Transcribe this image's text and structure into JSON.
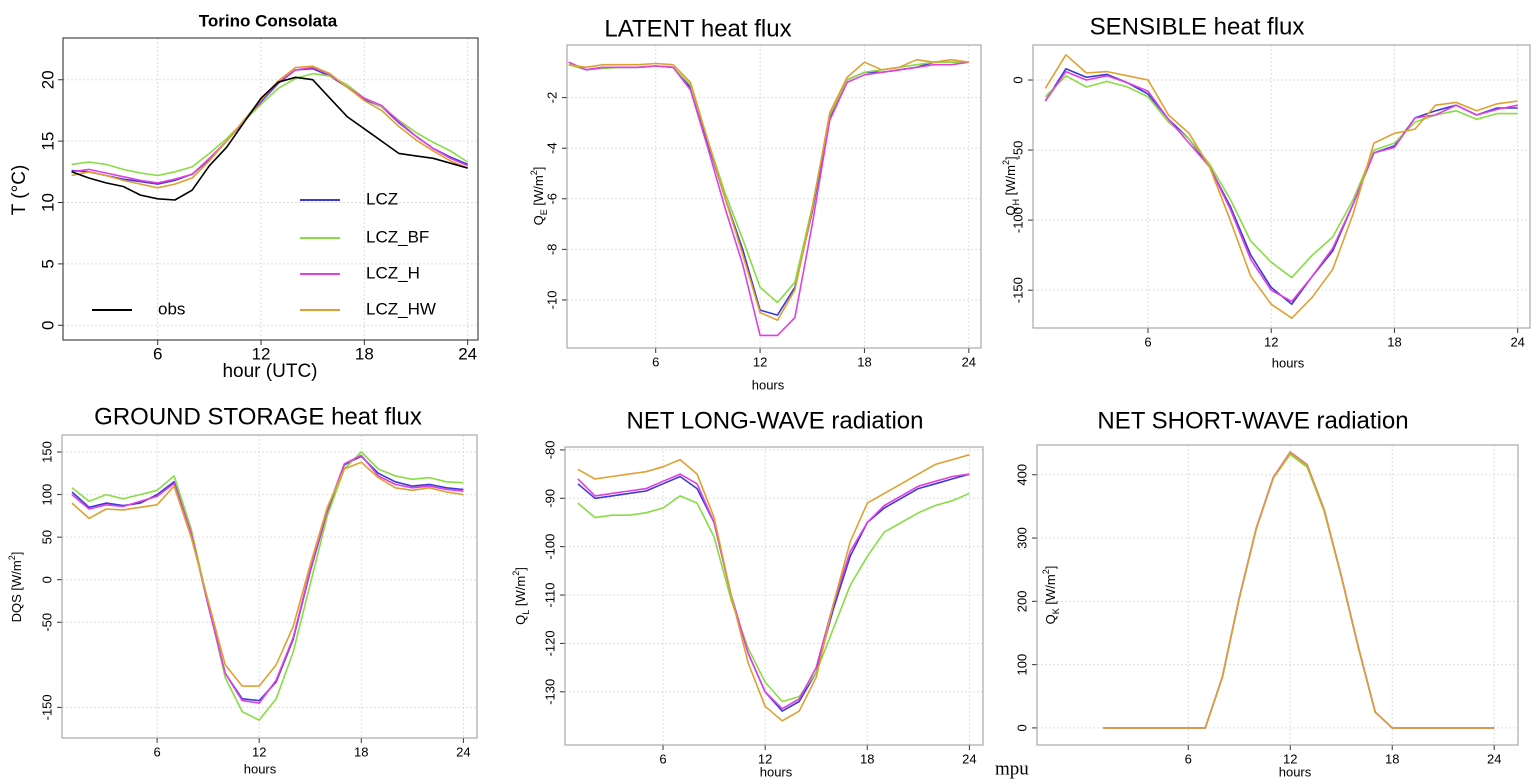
{
  "chart_data": [
    {
      "type": "line",
      "title": "Torino Consolata",
      "xlabel": "hour (UTC)",
      "ylabel": [
        {
          "text": "T (°C)"
        }
      ],
      "x": [
        1,
        2,
        3,
        4,
        5,
        6,
        7,
        8,
        9,
        10,
        11,
        12,
        13,
        14,
        15,
        16,
        17,
        18,
        19,
        20,
        21,
        22,
        23,
        24
      ],
      "xlim": [
        0.5,
        24.6
      ],
      "ylim": [
        -1.2,
        23.4
      ],
      "xticks": [
        6,
        12,
        18,
        24
      ],
      "yticks": [
        0,
        5,
        10,
        15,
        20
      ],
      "grid": true,
      "legend": true,
      "series": [
        {
          "name": "LCZ",
          "color": "#3b3bd8",
          "values": [
            12.6,
            12.5,
            12.2,
            11.9,
            11.7,
            11.5,
            11.8,
            12.3,
            13.5,
            15,
            16.6,
            18.2,
            19.7,
            20.8,
            20.9,
            20.3,
            19.4,
            18.4,
            17.8,
            16.5,
            15.4,
            14.4,
            13.7,
            13.1
          ]
        },
        {
          "name": "LCZ_BF",
          "color": "#88dd44",
          "values": [
            13.1,
            13.3,
            13.1,
            12.7,
            12.4,
            12.2,
            12.5,
            12.9,
            14,
            15.2,
            16.6,
            18,
            19.3,
            20.1,
            20.5,
            20.3,
            19.6,
            18.5,
            17.8,
            16.7,
            15.7,
            14.9,
            14.2,
            13.3
          ]
        },
        {
          "name": "LCZ_H",
          "color": "#e040e0",
          "values": [
            12.5,
            12.7,
            12.4,
            12.1,
            11.8,
            11.6,
            11.9,
            12.3,
            13.6,
            15,
            16.6,
            18.3,
            19.8,
            20.8,
            21,
            20.4,
            19.4,
            18.5,
            17.9,
            16.6,
            15.4,
            14.4,
            13.6,
            13
          ]
        },
        {
          "name": "LCZ_HW",
          "color": "#e0a030",
          "values": [
            12.2,
            12.5,
            12.2,
            11.8,
            11.5,
            11.2,
            11.5,
            12,
            13.4,
            15,
            16.7,
            18.4,
            19.9,
            21,
            21.1,
            20.5,
            19.4,
            18.3,
            17.5,
            16.2,
            15.1,
            14.2,
            13.4,
            12.8
          ]
        },
        {
          "name": "obs",
          "color": "#000000",
          "values": [
            12.5,
            12,
            11.6,
            11.3,
            10.6,
            10.3,
            10.2,
            11,
            13,
            14.5,
            16.5,
            18.5,
            19.8,
            20.2,
            20,
            18.5,
            17,
            16,
            15,
            14,
            13.8,
            13.6,
            13.2,
            12.8
          ]
        }
      ]
    },
    {
      "type": "line",
      "title": "LATENT heat flux",
      "xlabel": "hours",
      "ylabel": [
        {
          "text": "Q"
        },
        {
          "text": "E",
          "style": "sub"
        },
        {
          "text": " [W/m"
        },
        {
          "text": "2",
          "style": "sup"
        },
        {
          "text": "]"
        }
      ],
      "x": [
        1,
        2,
        3,
        4,
        5,
        6,
        7,
        8,
        9,
        10,
        11,
        12,
        13,
        14,
        15,
        16,
        17,
        18,
        19,
        20,
        21,
        22,
        23,
        24
      ],
      "xlim": [
        0.9,
        24.7
      ],
      "ylim": [
        -11.9,
        0.08
      ],
      "xticks": [
        6,
        12,
        18,
        24
      ],
      "yticks": [
        -2,
        -4,
        -6,
        -8,
        -10
      ],
      "grid": true,
      "series": [
        {
          "name": "LCZ",
          "color": "#3b3bd8",
          "values": [
            -0.6,
            -0.9,
            -0.8,
            -0.8,
            -0.8,
            -0.75,
            -0.8,
            -1.6,
            -3.8,
            -6,
            -8,
            -10.4,
            -10.6,
            -9.5,
            -6.5,
            -2.8,
            -1.3,
            -1,
            -1,
            -0.9,
            -0.8,
            -0.6,
            -0.6,
            -0.6
          ]
        },
        {
          "name": "LCZ_BF",
          "color": "#88dd44",
          "values": [
            -0.7,
            -0.9,
            -0.85,
            -0.8,
            -0.8,
            -0.75,
            -0.8,
            -1.5,
            -3.7,
            -5.8,
            -7.6,
            -9.5,
            -10.1,
            -9.3,
            -6.3,
            -2.7,
            -1.3,
            -1,
            -0.9,
            -0.8,
            -0.7,
            -0.6,
            -0.6,
            -0.6
          ]
        },
        {
          "name": "LCZ_H",
          "color": "#e040e0",
          "values": [
            -0.6,
            -0.9,
            -0.8,
            -0.8,
            -0.8,
            -0.75,
            -0.8,
            -1.7,
            -4,
            -6.4,
            -8.6,
            -11.4,
            -11.4,
            -10.7,
            -7,
            -2.9,
            -1.4,
            -1.1,
            -1,
            -0.9,
            -0.8,
            -0.7,
            -0.7,
            -0.6
          ]
        },
        {
          "name": "LCZ_HW",
          "color": "#e0a030",
          "values": [
            -0.7,
            -0.8,
            -0.7,
            -0.7,
            -0.7,
            -0.65,
            -0.7,
            -1.4,
            -3.7,
            -6,
            -8.2,
            -10.5,
            -10.8,
            -9.6,
            -6.4,
            -2.6,
            -1.2,
            -0.6,
            -0.9,
            -0.8,
            -0.5,
            -0.6,
            -0.5,
            -0.6
          ]
        }
      ]
    },
    {
      "type": "line",
      "title": "SENSIBLE heat flux",
      "xlabel": "hours",
      "ylabel": [
        {
          "text": "Q"
        },
        {
          "text": "H",
          "style": "sub"
        },
        {
          "text": " [W/m"
        },
        {
          "text": "2",
          "style": "sup"
        },
        {
          "text": "]"
        }
      ],
      "x": [
        1,
        2,
        3,
        4,
        5,
        6,
        7,
        8,
        9,
        10,
        11,
        12,
        13,
        14,
        15,
        16,
        17,
        18,
        19,
        20,
        21,
        22,
        23,
        24
      ],
      "xlim": [
        0.4,
        24.6
      ],
      "ylim": [
        -177,
        25
      ],
      "xticks": [
        6,
        12,
        18,
        24
      ],
      "yticks": [
        0,
        -50,
        -100,
        -150
      ],
      "grid": true,
      "series": [
        {
          "name": "LCZ",
          "color": "#3b3bd8",
          "values": [
            -15,
            8,
            2,
            4,
            -2,
            -10,
            -28,
            -42,
            -62,
            -90,
            -125,
            -148,
            -160,
            -140,
            -122,
            -88,
            -52,
            -47,
            -27,
            -22,
            -18,
            -25,
            -20,
            -20
          ]
        },
        {
          "name": "LCZ_BF",
          "color": "#88dd44",
          "values": [
            -12,
            3,
            -5,
            -1,
            -5,
            -12,
            -30,
            -42,
            -60,
            -85,
            -115,
            -130,
            -141,
            -125,
            -112,
            -85,
            -50,
            -45,
            -30,
            -25,
            -22,
            -28,
            -24,
            -24
          ]
        },
        {
          "name": "LCZ_H",
          "color": "#e040e0",
          "values": [
            -15,
            6,
            0,
            3,
            -2,
            -8,
            -28,
            -45,
            -62,
            -92,
            -128,
            -150,
            -158,
            -140,
            -120,
            -88,
            -52,
            -48,
            -27,
            -25,
            -18,
            -25,
            -21,
            -18
          ]
        },
        {
          "name": "LCZ_HW",
          "color": "#e0a030",
          "values": [
            -6,
            18,
            5,
            6,
            3,
            0,
            -25,
            -38,
            -62,
            -100,
            -140,
            -160,
            -170,
            -155,
            -135,
            -95,
            -45,
            -38,
            -35,
            -18,
            -16,
            -22,
            -17,
            -15
          ]
        }
      ]
    },
    {
      "type": "line",
      "title": "GROUND STORAGE heat flux",
      "xlabel": "hours",
      "ylabel": [
        {
          "text": "DQS [W/m"
        },
        {
          "text": "2",
          "style": "sup"
        },
        {
          "text": "]"
        }
      ],
      "x": [
        1,
        2,
        3,
        4,
        5,
        6,
        7,
        8,
        9,
        10,
        11,
        12,
        13,
        14,
        15,
        16,
        17,
        18,
        19,
        20,
        21,
        22,
        23,
        24
      ],
      "xlim": [
        0.41,
        24.8
      ],
      "ylim": [
        -186,
        170
      ],
      "xticks": [
        6,
        12,
        18,
        24
      ],
      "yticks": [
        150,
        100,
        50,
        0,
        -50,
        -150
      ],
      "grid": true,
      "series": [
        {
          "name": "LCZ",
          "color": "#3b3bd8",
          "values": [
            103,
            85,
            90,
            87,
            90,
            100,
            115,
            55,
            -30,
            -110,
            -140,
            -142,
            -120,
            -70,
            10,
            80,
            135,
            145,
            125,
            115,
            110,
            112,
            108,
            106
          ]
        },
        {
          "name": "LCZ_BF",
          "color": "#88dd44",
          "values": [
            108,
            92,
            100,
            95,
            100,
            105,
            122,
            60,
            -28,
            -115,
            -155,
            -165,
            -140,
            -85,
            -5,
            75,
            130,
            150,
            130,
            122,
            118,
            120,
            115,
            114
          ]
        },
        {
          "name": "LCZ_H",
          "color": "#e040e0",
          "values": [
            100,
            83,
            88,
            86,
            92,
            98,
            113,
            55,
            -30,
            -110,
            -142,
            -145,
            -118,
            -68,
            12,
            82,
            136,
            146,
            122,
            112,
            108,
            110,
            106,
            104
          ]
        },
        {
          "name": "LCZ_HW",
          "color": "#e0a030",
          "values": [
            90,
            72,
            83,
            82,
            85,
            88,
            110,
            50,
            -25,
            -100,
            -125,
            -125,
            -100,
            -55,
            18,
            85,
            130,
            138,
            120,
            108,
            105,
            108,
            103,
            100
          ]
        }
      ]
    },
    {
      "type": "line",
      "title": "NET LONG-WAVE radiation",
      "xlabel": "hours",
      "ylabel": [
        {
          "text": "Q"
        },
        {
          "text": "L",
          "style": "sub"
        },
        {
          "text": " [W/m"
        },
        {
          "text": "2",
          "style": "sup"
        },
        {
          "text": "]"
        }
      ],
      "x": [
        1,
        2,
        3,
        4,
        5,
        6,
        7,
        8,
        9,
        10,
        11,
        12,
        13,
        14,
        15,
        16,
        17,
        18,
        19,
        20,
        21,
        22,
        23,
        24
      ],
      "xlim": [
        0.24,
        24.8
      ],
      "ylim": [
        -141,
        -79.4
      ],
      "xticks": [
        6,
        12,
        18,
        24
      ],
      "yticks": [
        -80,
        -90,
        -100,
        -110,
        -120,
        -130
      ],
      "grid": true,
      "series": [
        {
          "name": "LCZ",
          "color": "#3b3bd8",
          "values": [
            -87,
            -90,
            -89.5,
            -89,
            -88.5,
            -87,
            -85.5,
            -88,
            -95,
            -110,
            -122,
            -130,
            -134,
            -132,
            -126,
            -113,
            -102,
            -95,
            -92,
            -90,
            -88,
            -87,
            -86,
            -85
          ]
        },
        {
          "name": "LCZ_BF",
          "color": "#88dd44",
          "values": [
            -91,
            -94,
            -93.5,
            -93.5,
            -93,
            -92,
            -89.5,
            -91,
            -98,
            -111,
            -121,
            -128,
            -132,
            -131,
            -126,
            -117,
            -108,
            -102,
            -97,
            -95,
            -93,
            -91.5,
            -90.5,
            -89
          ]
        },
        {
          "name": "LCZ_H",
          "color": "#e040e0",
          "values": [
            -86,
            -89.5,
            -89,
            -88.5,
            -88,
            -86.5,
            -85,
            -87,
            -95,
            -110,
            -122,
            -130,
            -133.5,
            -131.5,
            -125,
            -112,
            -101,
            -95,
            -91.5,
            -89.5,
            -87.5,
            -86.5,
            -85.5,
            -85
          ]
        },
        {
          "name": "LCZ_HW",
          "color": "#e0a030",
          "values": [
            -84,
            -86,
            -85.5,
            -85,
            -84.5,
            -83.5,
            -82,
            -85,
            -94,
            -110,
            -124,
            -133,
            -136,
            -134,
            -127,
            -112,
            -99,
            -91,
            -89,
            -87,
            -85,
            -83,
            -82,
            -81
          ]
        }
      ]
    },
    {
      "type": "line",
      "title": "NET SHORT-WAVE radiation",
      "xlabel": "hours",
      "ylabel": [
        {
          "text": "Q"
        },
        {
          "text": "K",
          "style": "sub"
        },
        {
          "text": " [W/m"
        },
        {
          "text": "2",
          "style": "sup"
        },
        {
          "text": "]"
        }
      ],
      "x": [
        1,
        2,
        3,
        4,
        5,
        6,
        7,
        8,
        9,
        10,
        11,
        12,
        13,
        14,
        15,
        16,
        17,
        18,
        19,
        20,
        21,
        22,
        23,
        24
      ],
      "xlim": [
        -2.9,
        25.4
      ],
      "ylim": [
        -27,
        447
      ],
      "xticks": [
        6,
        12,
        18,
        24
      ],
      "yticks": [
        0,
        100,
        200,
        300,
        400
      ],
      "grid": true,
      "series": [
        {
          "name": "LCZ",
          "color": "#3b3bd8",
          "values": [
            0,
            0,
            0,
            0,
            0,
            0,
            0,
            80,
            205,
            315,
            395,
            433,
            413,
            343,
            240,
            128,
            25,
            0,
            0,
            0,
            0,
            0,
            0,
            0
          ]
        },
        {
          "name": "LCZ_BF",
          "color": "#88dd44",
          "values": [
            0,
            0,
            0,
            0,
            0,
            0,
            0,
            80,
            205,
            315,
            395,
            432,
            412,
            342,
            240,
            128,
            25,
            0,
            0,
            0,
            0,
            0,
            0,
            0
          ]
        },
        {
          "name": "LCZ_H",
          "color": "#e040e0",
          "values": [
            0,
            0,
            0,
            0,
            0,
            0,
            0,
            80,
            206,
            316,
            396,
            436,
            416,
            345,
            241,
            129,
            25,
            0,
            0,
            0,
            0,
            0,
            0,
            0
          ]
        },
        {
          "name": "LCZ_HW",
          "color": "#e0a030",
          "values": [
            0,
            0,
            0,
            0,
            0,
            0,
            0,
            80,
            205,
            315,
            395,
            435,
            415,
            344,
            240,
            128,
            25,
            0,
            0,
            0,
            0,
            0,
            0,
            0
          ]
        }
      ]
    }
  ],
  "footer_fragment": "mpu"
}
